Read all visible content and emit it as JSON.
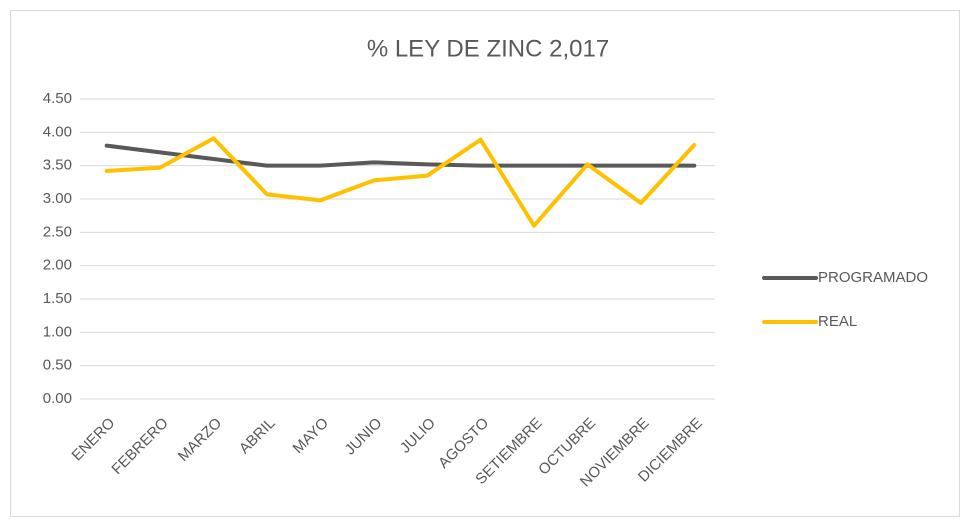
{
  "chart_data": {
    "type": "line",
    "title": "% LEY DE ZINC 2,017",
    "categories": [
      "ENERO",
      "FEBRERO",
      "MARZO",
      "ABRIL",
      "MAYO",
      "JUNIO",
      "JULIO",
      "AGOSTO",
      "SETIEMBRE",
      "OCTUBRE",
      "NOVIEMBRE",
      "DICIEMBRE"
    ],
    "series": [
      {
        "name": "PROGRAMADO",
        "color": "#595959",
        "values": [
          3.8,
          3.7,
          3.6,
          3.5,
          3.5,
          3.55,
          3.52,
          3.5,
          3.5,
          3.5,
          3.5,
          3.5
        ]
      },
      {
        "name": "REAL",
        "color": "#ffc000",
        "values": [
          3.42,
          3.47,
          3.91,
          3.07,
          2.98,
          3.28,
          3.35,
          3.89,
          2.6,
          3.52,
          2.94,
          3.81
        ]
      }
    ],
    "ylim": [
      0,
      4.5
    ],
    "yticks": [
      {
        "value": 0,
        "label": "0.00"
      },
      {
        "value": 0.5,
        "label": "0.50"
      },
      {
        "value": 1,
        "label": "1.00"
      },
      {
        "value": 1.5,
        "label": "1.50"
      },
      {
        "value": 2,
        "label": "2.00"
      },
      {
        "value": 2.5,
        "label": "2.50"
      },
      {
        "value": 3,
        "label": "3.00"
      },
      {
        "value": 3.5,
        "label": "3.50"
      },
      {
        "value": 4,
        "label": "4.00"
      },
      {
        "value": 4.5,
        "label": "4.50"
      }
    ],
    "grid": true,
    "legend": "right"
  }
}
